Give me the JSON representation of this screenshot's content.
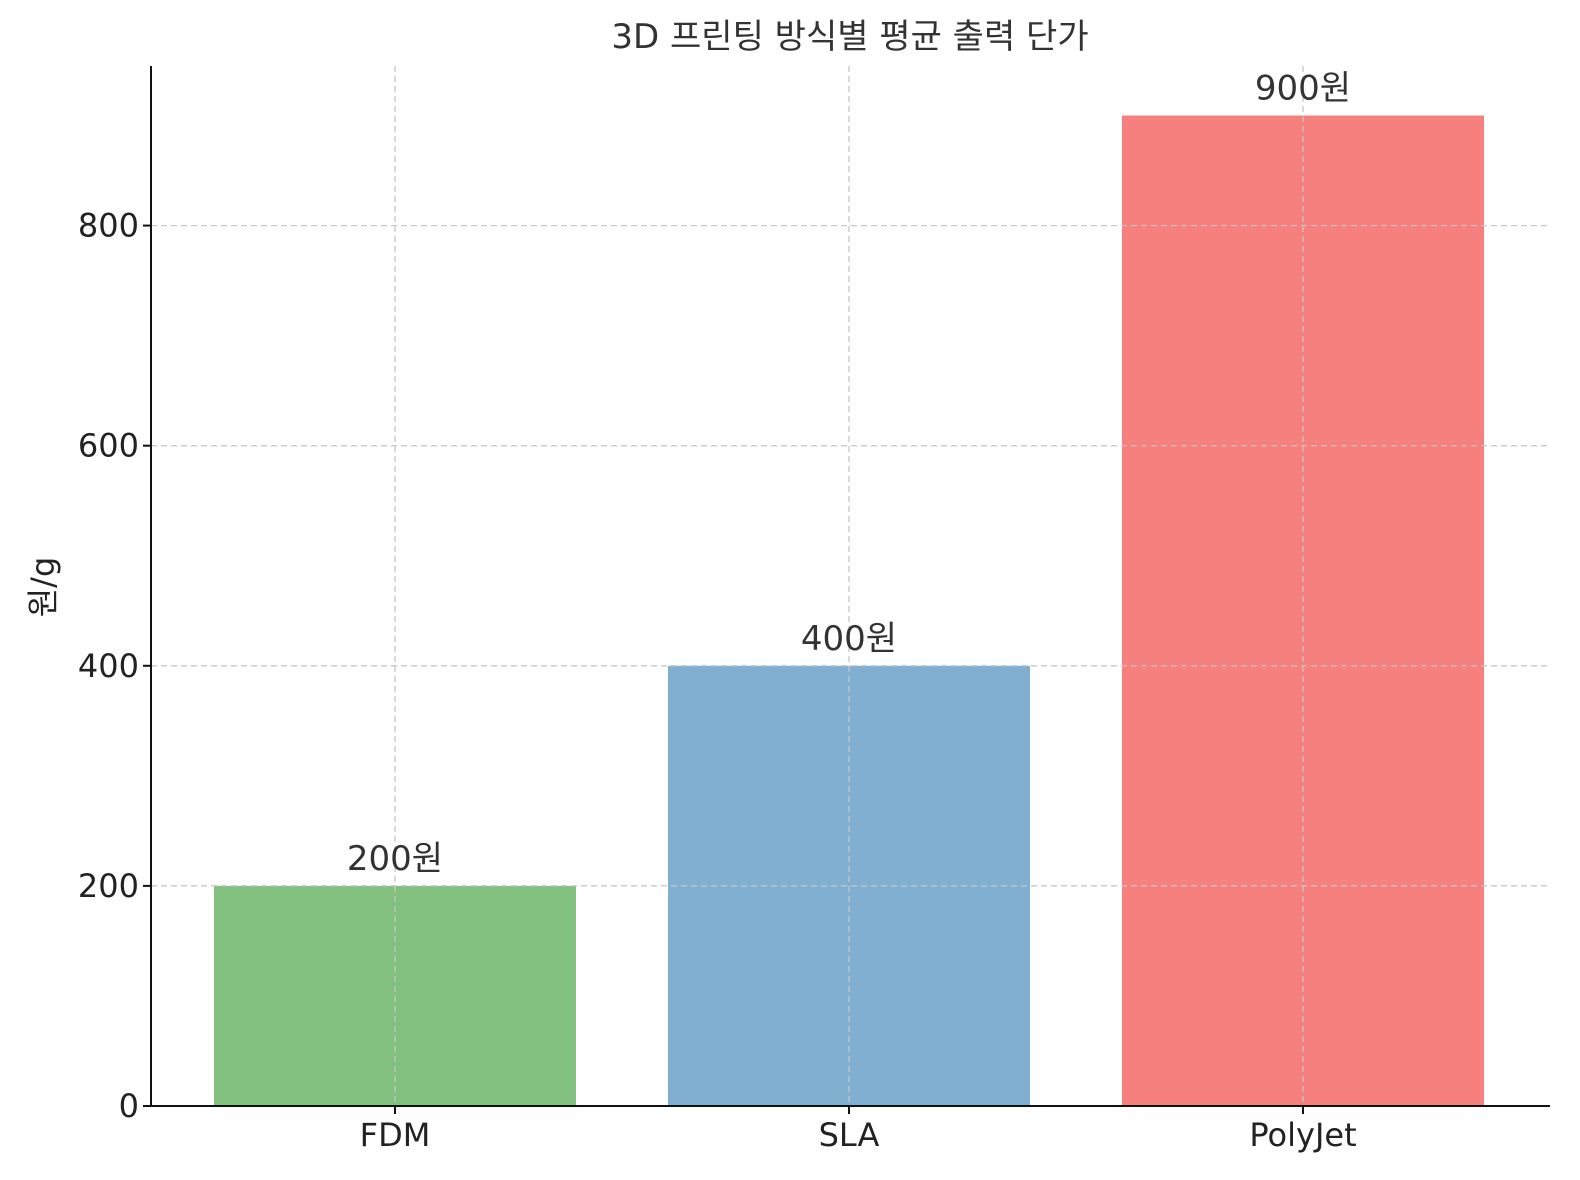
{
  "chart_data": {
    "type": "bar",
    "title": "3D 프린팅 방식별 평균 출력 단가",
    "xlabel": "",
    "ylabel": "원/g",
    "categories": [
      "FDM",
      "SLA",
      "PolyJet"
    ],
    "values": [
      200,
      400,
      900
    ],
    "data_labels": [
      "200원",
      "400원",
      "900원"
    ],
    "colors": [
      "#81c07f",
      "#80afd2",
      "#f6807d"
    ],
    "yticks": [
      0,
      200,
      400,
      600,
      800
    ],
    "ytick_labels": [
      "0",
      "200",
      "400",
      "600",
      "800"
    ],
    "ylim": [
      0,
      945
    ],
    "grid": true
  }
}
